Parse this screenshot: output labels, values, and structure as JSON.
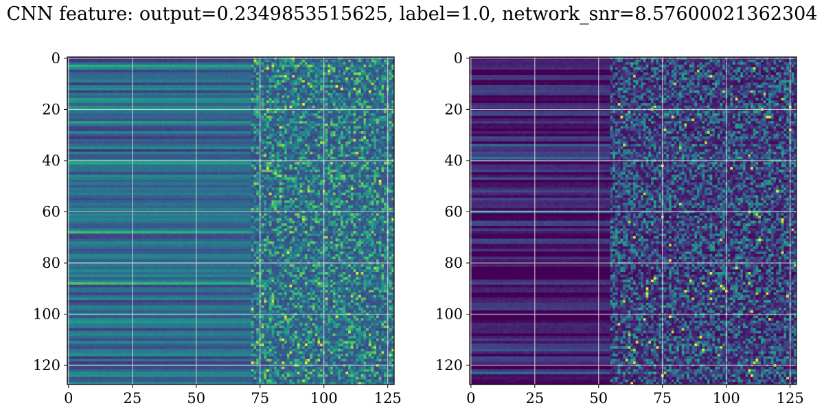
{
  "figure": {
    "title": "CNN feature: output=0.2349853515625, label=1.0, network_snr=8.57600021362304"
  },
  "chart_data": [
    {
      "type": "heatmap",
      "panel": "left",
      "colormap": "viridis",
      "grid": true,
      "rows": 128,
      "cols": 128,
      "xlim": [
        -0.5,
        127.5
      ],
      "ylim": [
        127.5,
        -0.5
      ],
      "xticks": [
        0,
        25,
        50,
        75,
        100,
        125
      ],
      "yticks": [
        0,
        20,
        40,
        60,
        80,
        100,
        120
      ],
      "xlabel": "",
      "ylabel": "",
      "description": "Smooth horizontal banding for columns 0-70; noisy speckle with bright yellow points for columns 75-127",
      "transition_col": 72,
      "base_level": 0.33,
      "bright_rows": [
        3,
        16,
        25,
        41,
        63,
        68,
        88,
        100,
        103
      ]
    },
    {
      "type": "heatmap",
      "panel": "right",
      "colormap": "viridis",
      "grid": true,
      "rows": 128,
      "cols": 128,
      "xlim": [
        -0.5,
        127.5
      ],
      "ylim": [
        127.5,
        -0.5
      ],
      "xticks": [
        0,
        25,
        50,
        75,
        100,
        125
      ],
      "yticks": [
        0,
        20,
        40,
        60,
        80,
        100,
        120
      ],
      "xlabel": "",
      "ylabel": "",
      "description": "Mostly dark purple with faint horizontal banding on the left; sparse teal/green speckles for columns 55-127",
      "transition_col": 55,
      "base_level": 0.07,
      "bright_rows": [
        34,
        39,
        60,
        114,
        123
      ]
    }
  ]
}
